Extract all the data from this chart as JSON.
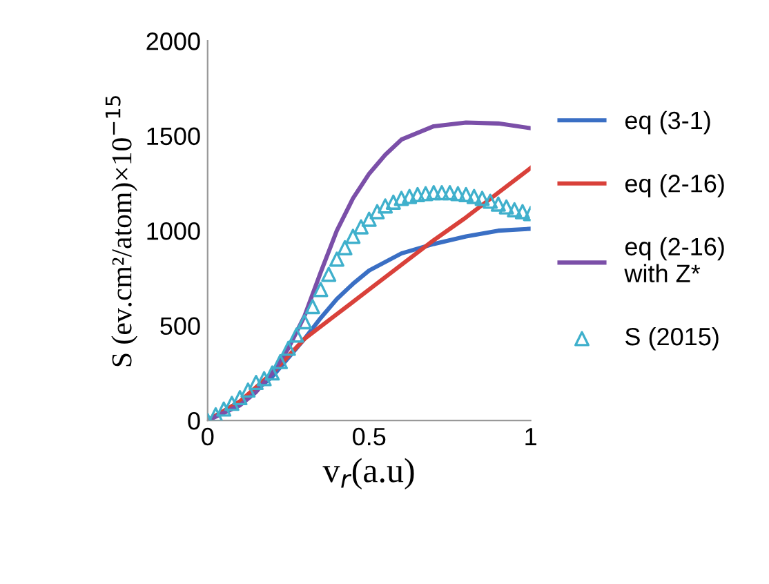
{
  "chart_data": {
    "type": "line",
    "xlabel": "v$_{r}$(a.u)",
    "ylabel": "S (ev.cm²/atom)×10$^{−15}$",
    "xlim": [
      0,
      1
    ],
    "ylim": [
      0,
      2000
    ],
    "xticks": [
      0,
      {
        "value": 0.5,
        "label": "0.5"
      },
      1
    ],
    "yticks": [
      0,
      500,
      1000,
      1500,
      2000
    ],
    "grid": false,
    "legend": "right",
    "marker": "none",
    "line_style": "solid",
    "series": [
      {
        "name": "eq (3-1)",
        "color": "#3a6fc4",
        "x": [
          0,
          0.05,
          0.1,
          0.15,
          0.2,
          0.25,
          0.3,
          0.35,
          0.4,
          0.45,
          0.5,
          0.6,
          0.7,
          0.8,
          0.9,
          1.0
        ],
        "values": [
          0,
          50,
          100,
          160,
          230,
          330,
          430,
          540,
          640,
          720,
          790,
          880,
          930,
          970,
          1000,
          1010
        ]
      },
      {
        "name": "eq (2-16)",
        "color": "#d9413a",
        "x": [
          0,
          0.1,
          0.2,
          0.3,
          0.4,
          0.5,
          0.6,
          0.7,
          0.8,
          0.9,
          1.0
        ],
        "values": [
          0,
          100,
          250,
          430,
          560,
          690,
          820,
          950,
          1070,
          1200,
          1330
        ]
      },
      {
        "name": "eq (2-16)\nwith Z*",
        "color": "#7b4fa8",
        "x": [
          0,
          0.05,
          0.1,
          0.15,
          0.2,
          0.25,
          0.3,
          0.35,
          0.4,
          0.45,
          0.5,
          0.55,
          0.6,
          0.7,
          0.8,
          0.9,
          1.0
        ],
        "values": [
          0,
          40,
          80,
          150,
          250,
          380,
          550,
          780,
          1000,
          1170,
          1300,
          1400,
          1480,
          1550,
          1570,
          1565,
          1540
        ]
      },
      {
        "name": "S (2015)",
        "type": "scatter",
        "marker": "triangle",
        "color": "#3fb0cc",
        "x": [
          0,
          0.025,
          0.05,
          0.075,
          0.1,
          0.125,
          0.15,
          0.175,
          0.2,
          0.225,
          0.25,
          0.275,
          0.3,
          0.325,
          0.35,
          0.375,
          0.4,
          0.425,
          0.45,
          0.475,
          0.5,
          0.525,
          0.55,
          0.575,
          0.6,
          0.625,
          0.65,
          0.675,
          0.7,
          0.725,
          0.75,
          0.775,
          0.8,
          0.825,
          0.85,
          0.875,
          0.9,
          0.925,
          0.95,
          0.975,
          1.0
        ],
        "values": [
          0,
          30,
          60,
          90,
          120,
          160,
          200,
          220,
          250,
          310,
          380,
          450,
          520,
          600,
          690,
          770,
          850,
          910,
          970,
          1020,
          1060,
          1100,
          1130,
          1150,
          1170,
          1180,
          1190,
          1195,
          1200,
          1200,
          1200,
          1195,
          1190,
          1180,
          1170,
          1155,
          1140,
          1125,
          1110,
          1100,
          1090
        ]
      }
    ]
  }
}
